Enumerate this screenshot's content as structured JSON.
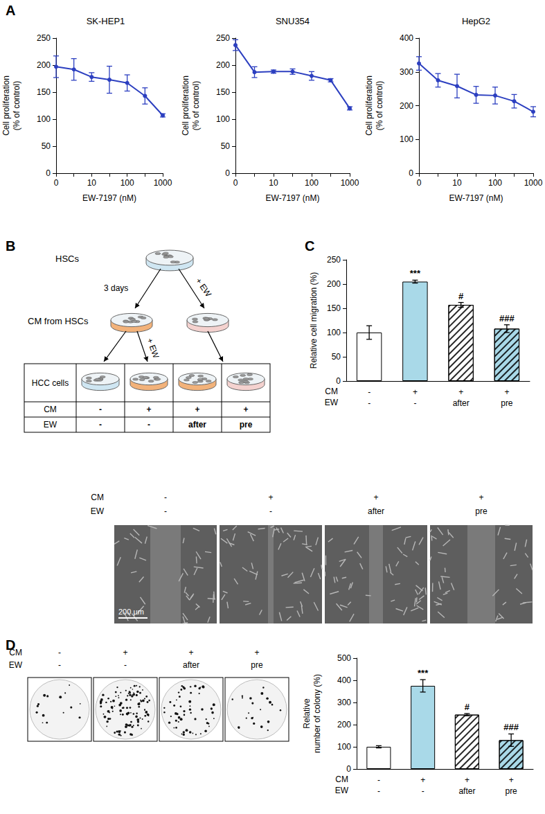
{
  "chart_data": [
    {
      "type": "line",
      "title": "SK-HEP1",
      "x_label": "EW-7197 (nM)",
      "y_label": "Cell proliferation\n(% of control)",
      "categories": [
        "0",
        null,
        "10",
        null,
        "100",
        null,
        "1000"
      ],
      "values": [
        197,
        192,
        178,
        173,
        167,
        143,
        107
      ],
      "errors": [
        20,
        20,
        8,
        25,
        15,
        15,
        3
      ],
      "color": "#2c3fc0",
      "marker": "circle",
      "grid": false,
      "ylim": [
        0,
        250
      ],
      "yticks": [
        0,
        50,
        100,
        150,
        200,
        250
      ]
    },
    {
      "type": "line",
      "title": "SNU354",
      "x_label": "EW-7197 (nM)",
      "y_label": "Cell proliferation\n(% of control)",
      "categories": [
        "0",
        null,
        "10",
        null,
        "100",
        null,
        "1000"
      ],
      "values": [
        237,
        187,
        188,
        188,
        180,
        172,
        120
      ],
      "errors": [
        10,
        10,
        3,
        5,
        8,
        3,
        3
      ],
      "color": "#2c3fc0",
      "marker": "circle",
      "grid": false,
      "ylim": [
        0,
        250
      ],
      "yticks": [
        0,
        50,
        100,
        150,
        200,
        250
      ]
    },
    {
      "type": "line",
      "title": "HepG2",
      "x_label": "EW-7197 (nM)",
      "y_label": "Cell proliferation\n(% of control)",
      "categories": [
        "0",
        null,
        "10",
        null,
        "100",
        null,
        "1000"
      ],
      "values": [
        325,
        275,
        258,
        232,
        230,
        213,
        182
      ],
      "errors": [
        20,
        20,
        35,
        25,
        25,
        20,
        15
      ],
      "color": "#2c3fc0",
      "marker": "circle",
      "grid": false,
      "ylim": [
        0,
        400
      ],
      "yticks": [
        0,
        100,
        200,
        300,
        400
      ]
    },
    {
      "type": "bar",
      "y_label": "Relative cell migration (%)",
      "x_rows": [
        {
          "name": "CM",
          "labels": [
            "-",
            "+",
            "+",
            "+"
          ]
        },
        {
          "name": "EW",
          "labels": [
            "-",
            "-",
            "after",
            "pre"
          ]
        }
      ],
      "values": [
        100,
        205,
        157,
        108
      ],
      "errors": [
        14,
        3,
        5,
        8
      ],
      "annotations": [
        null,
        "***",
        "#",
        "###"
      ],
      "colors": [
        "#ffffff",
        "#a9d9e8",
        "#ffffff",
        "#a9d9e8"
      ],
      "grid": false,
      "ylim": [
        0,
        250
      ],
      "yticks": [
        0,
        50,
        100,
        150,
        200,
        250
      ]
    },
    {
      "type": "bar",
      "y_label": "Relative\nnumber of colony (%)",
      "x_rows": [
        {
          "name": "CM",
          "labels": [
            "-",
            "+",
            "+",
            "+"
          ]
        },
        {
          "name": "EW",
          "labels": [
            "-",
            "-",
            "after",
            "pre"
          ]
        }
      ],
      "values": [
        100,
        375,
        245,
        130
      ],
      "errors": [
        5,
        28,
        5,
        28
      ],
      "annotations": [
        null,
        "***",
        "#",
        "###"
      ],
      "colors": [
        "#ffffff",
        "#a9d9e8",
        "#ffffff",
        "#a9d9e8"
      ],
      "grid": false,
      "ylim": [
        0,
        500
      ],
      "yticks": [
        0,
        100,
        200,
        300,
        400,
        500
      ]
    }
  ],
  "panel_labels": [
    "A",
    "B",
    "C",
    "D"
  ],
  "diagram": {
    "nodes": [
      {
        "label": "HSCs"
      },
      {
        "label": "CM from HSCs"
      }
    ],
    "edges": [
      {
        "label": "3 days"
      },
      {
        "label": "+ EW"
      },
      {
        "label": "+ EW"
      }
    ],
    "table": {
      "rows": [
        {
          "label": "HCC cells"
        },
        {
          "label": "CM",
          "cells": [
            "-",
            "+",
            "+",
            "+"
          ]
        },
        {
          "label": "EW",
          "cells": [
            "-",
            "-",
            "after",
            "pre"
          ]
        }
      ]
    }
  },
  "migration_images": {
    "rows": [
      {
        "name": "CM",
        "labels": [
          "-",
          "+",
          "+",
          "+"
        ]
      },
      {
        "name": "EW",
        "labels": [
          "-",
          "-",
          "after",
          "pre"
        ]
      }
    ],
    "scale_bar": "200 µm"
  },
  "colony_images": {
    "rows": [
      {
        "name": "CM",
        "labels": [
          "-",
          "+",
          "+",
          "+"
        ]
      },
      {
        "name": "EW",
        "labels": [
          "-",
          "-",
          "after",
          "pre"
        ]
      }
    ]
  }
}
